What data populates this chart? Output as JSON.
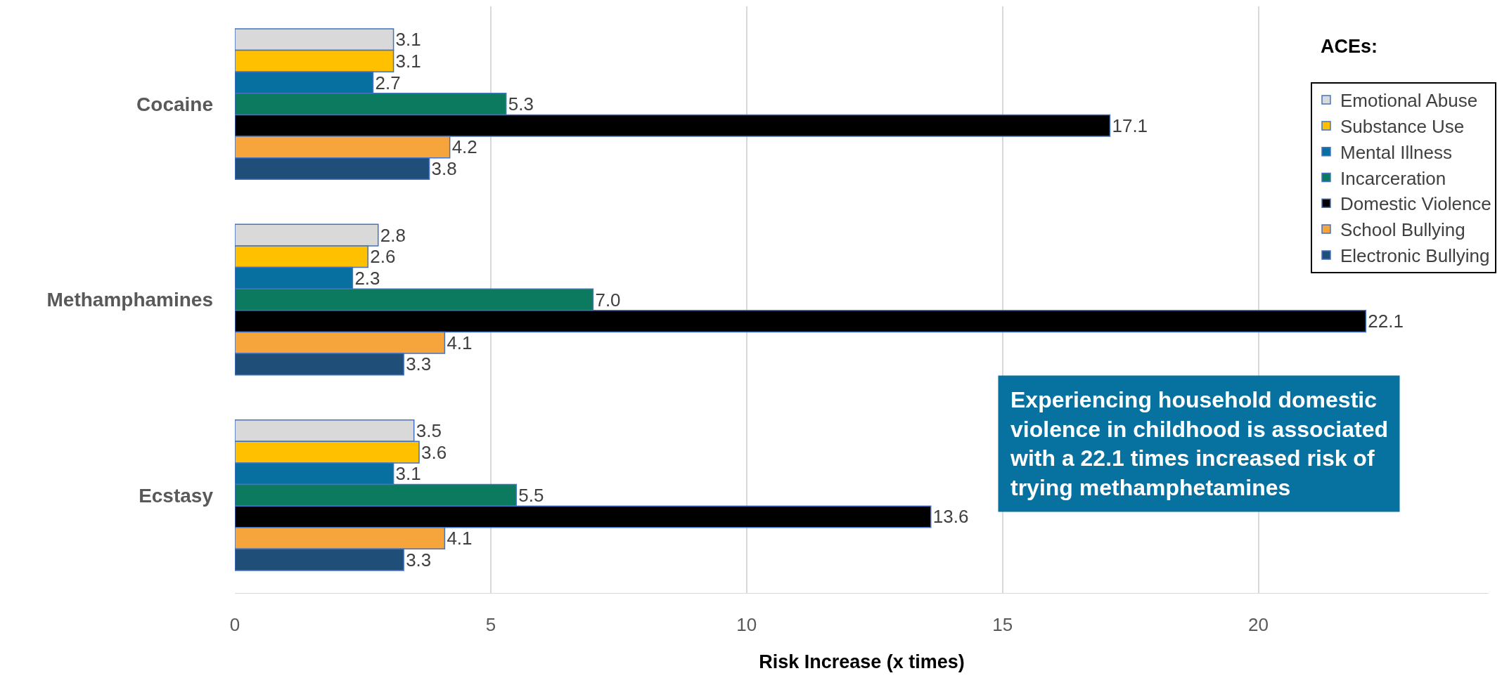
{
  "chart_data": {
    "type": "bar",
    "orientation": "horizontal",
    "categories": [
      "Cocaine",
      "Methamphamines",
      "Ecstasy"
    ],
    "xlabel": "Risk Increase (x times)",
    "legend_title": "ACEs:",
    "legend": "top right",
    "grid": "x",
    "xlim": [
      0,
      24.5
    ],
    "xticks": [
      0,
      5,
      10,
      15,
      20
    ],
    "annotations": [
      "Experiencing household domestic violence in childhood is associated with a 22.1 times increased risk of trying methamphetamines"
    ],
    "series": [
      {
        "name": "Emotional Abuse",
        "color": "#d9d9d9",
        "values": [
          3.1,
          2.8,
          3.5
        ],
        "value_labels": [
          "3.1",
          "2.8",
          "3.5"
        ]
      },
      {
        "name": "Substance Use",
        "color": "#ffc000",
        "values": [
          3.1,
          2.6,
          3.6
        ],
        "value_labels": [
          "3.1",
          "2.6",
          "3.6"
        ]
      },
      {
        "name": "Mental Illness",
        "color": "#0770a0",
        "values": [
          2.7,
          2.3,
          3.1
        ],
        "value_labels": [
          "2.7",
          "2.3",
          "3.1"
        ]
      },
      {
        "name": "Incarceration",
        "color": "#0b7a5e",
        "values": [
          5.3,
          7.0,
          5.5
        ],
        "value_labels": [
          "5.3",
          "7.0",
          "5.5"
        ]
      },
      {
        "name": "Domestic Violence",
        "color": "#000000",
        "values": [
          17.1,
          22.1,
          13.6
        ],
        "value_labels": [
          "17.1",
          "22.1",
          "13.6"
        ]
      },
      {
        "name": "School Bullying",
        "color": "#f5a53c",
        "values": [
          4.2,
          4.1,
          4.1
        ],
        "value_labels": [
          "4.2",
          "4.1",
          "4.1"
        ]
      },
      {
        "name": "Electronic Bullying",
        "color": "#1f4e79",
        "values": [
          3.8,
          3.3,
          3.3
        ],
        "value_labels": [
          "3.8",
          "3.3",
          "3.3"
        ]
      }
    ]
  }
}
